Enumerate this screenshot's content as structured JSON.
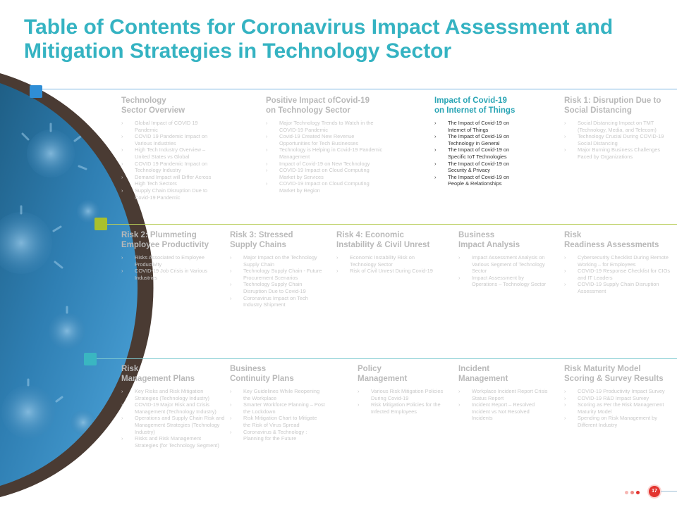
{
  "page": {
    "title": "Table of Contents for Coronavirus Impact Assessment and Mitigation Strategies in Technology Sector"
  },
  "theme": {
    "accent": "#35b3c2",
    "blue_marker": "#2f8ed6",
    "green_marker": "#a9c02d",
    "teal_marker": "#3ab6c1",
    "dark_arc": "#4a3b33",
    "badge": "#e3342f"
  },
  "rows": [
    {
      "sections": [
        {
          "title_line1": "Technology",
          "title_line2": "Sector Overview",
          "active": false,
          "items": [
            "Global Impact of COVID 19 Pandemic",
            "COVID 19 Pandemic Impact on Various Industries",
            "High Tech Industry Overview – United States vs Global",
            "COVID 19 Pandemic Impact on Technology Industry",
            "Demand Impact will Differ Across High Tech Sectors",
            "Supply Chain Disruption Due to Covid-19 Pandemic"
          ]
        },
        {
          "title_line1": "Positive Impact ofCovid-19",
          "title_line2": "on Technology  Sector",
          "active": false,
          "items": [
            "Major Technology  Trends to Watch in the COVID-19 Pandemic",
            "Covid-19 Created  New Revenue Opportunities  for Tech Businesses",
            "Technology  is Helping in Covid-19 Pandemic Management",
            "Impact of Covid-19 on  New Technology",
            "COVID-19 Impact on Cloud Computing Market by Services",
            "COVID-19 Impact on Cloud Computing Market by Region"
          ]
        },
        {
          "title_line1": "Impact of Covid-19",
          "title_line2": "on Internet of Things",
          "active": true,
          "items": [
            "The Impact of Covid-19 on Internet of Things",
            "The Impact of Covid-19 on Technology  in General",
            "The Impact of Covid-19 on Specific IoT Technologies",
            "The Impact of Covid-19 on Security & Privacy",
            "The Impact of Covid-19 on People  & Relationships"
          ]
        },
        {
          "title_line1": "Risk 1: Disruption Due to",
          "title_line2": "Social Distancing",
          "active": false,
          "items": [
            "Social Distancing Impact on TMT (Technology, Media, and Telecom)",
            "Technology  Crucial During COVID-19 Social Distancing",
            "Major Burning Business Challenges  Faced by Organizations"
          ]
        }
      ]
    },
    {
      "sections": [
        {
          "title_line1": "Risk 2: Plummeting",
          "title_line2": "Employee Productivity",
          "active": false,
          "items": [
            "Risks Associated to Employee Productivity",
            "COVID-19 Job Crisis in Various Industries"
          ]
        },
        {
          "title_line1": "Risk 3: Stressed",
          "title_line2": "Supply Chains",
          "active": false,
          "items": [
            "Major Impact on the Technology Supply Chain",
            "Technology  Supply Chain - Future Procurement Scenarios",
            "Technology  Supply Chain Disruption Due to Covid-19",
            "Coronavirus  Impact on Tech Industry Shipment"
          ]
        },
        {
          "title_line1": "Risk 4: Economic",
          "title_line2": "Instability & Civil  Unrest",
          "active": false,
          "items": [
            "Economic Instability  Risk on Technology  Sector",
            "Risk of Civil Unrest During Covid-19"
          ]
        },
        {
          "title_line1": "Business",
          "title_line2": "Impact Analysis",
          "active": false,
          "items": [
            "Impact Assessment Analysis on Various Segment of Technology  Sector",
            "Impact Assessment  by Operations – Technology Sector"
          ]
        },
        {
          "title_line1": "Risk",
          "title_line2": "Readiness Assessments",
          "active": false,
          "items": [
            "Cybersecurity Checklist During Remote Working – for  Employees",
            "COVID-19 Response  Checklist for CIOs and IT Leaders",
            "COVID-19 Supply  Chain Disruption Assessment"
          ]
        }
      ]
    },
    {
      "sections": [
        {
          "title_line1": "Risk",
          "title_line2": "Management Plans",
          "active": false,
          "items": [
            "Key Risks and Risk Mitigation Strategies (Technology  Industry)",
            "COVID-19 Major Risk and Crisis Management  (Technology Industry)",
            "Operations and Supply Chain Risk and Management  Strategies (Technology  Industry)",
            "Risks and Risk Management Strategies (for Technology Segment)"
          ]
        },
        {
          "title_line1": "Business",
          "title_line2": "Continuity  Plans",
          "active": false,
          "items": [
            "Key Guidelines  While Reopening  the Workplace",
            "Smarter Workforce Planning – Post the Lockdown",
            "Risk Mitigation Chart to Mitigate the Risk of Virus Spread",
            "Coronavirus & Technology  : Planning  for the Future"
          ]
        },
        {
          "title_line1": "Policy",
          "title_line2": "Management",
          "active": false,
          "items": [
            "Various Risk Mitigation Policies During Covid-19",
            "Risk Mitigation Policies for the Infected  Employees"
          ]
        },
        {
          "title_line1": "Incident",
          "title_line2": "Management",
          "active": false,
          "items": [
            "Workplace Incident Report Crisis Status Report",
            "Incident Report – Resolved Incident vs Not Resolved Incidents"
          ]
        },
        {
          "title_line1": "Risk Maturity Model",
          "title_line2": "Scoring & Survey Results",
          "active": false,
          "items": [
            "COVID-19 Productivity Impact Survey",
            "COVID-19 R&D Impact Survey",
            "Scoring as Per the Risk Management  Maturity Model",
            "Spending  on Risk Management  by Different Industry"
          ]
        }
      ]
    }
  ],
  "footer": {
    "page_number": "17"
  }
}
